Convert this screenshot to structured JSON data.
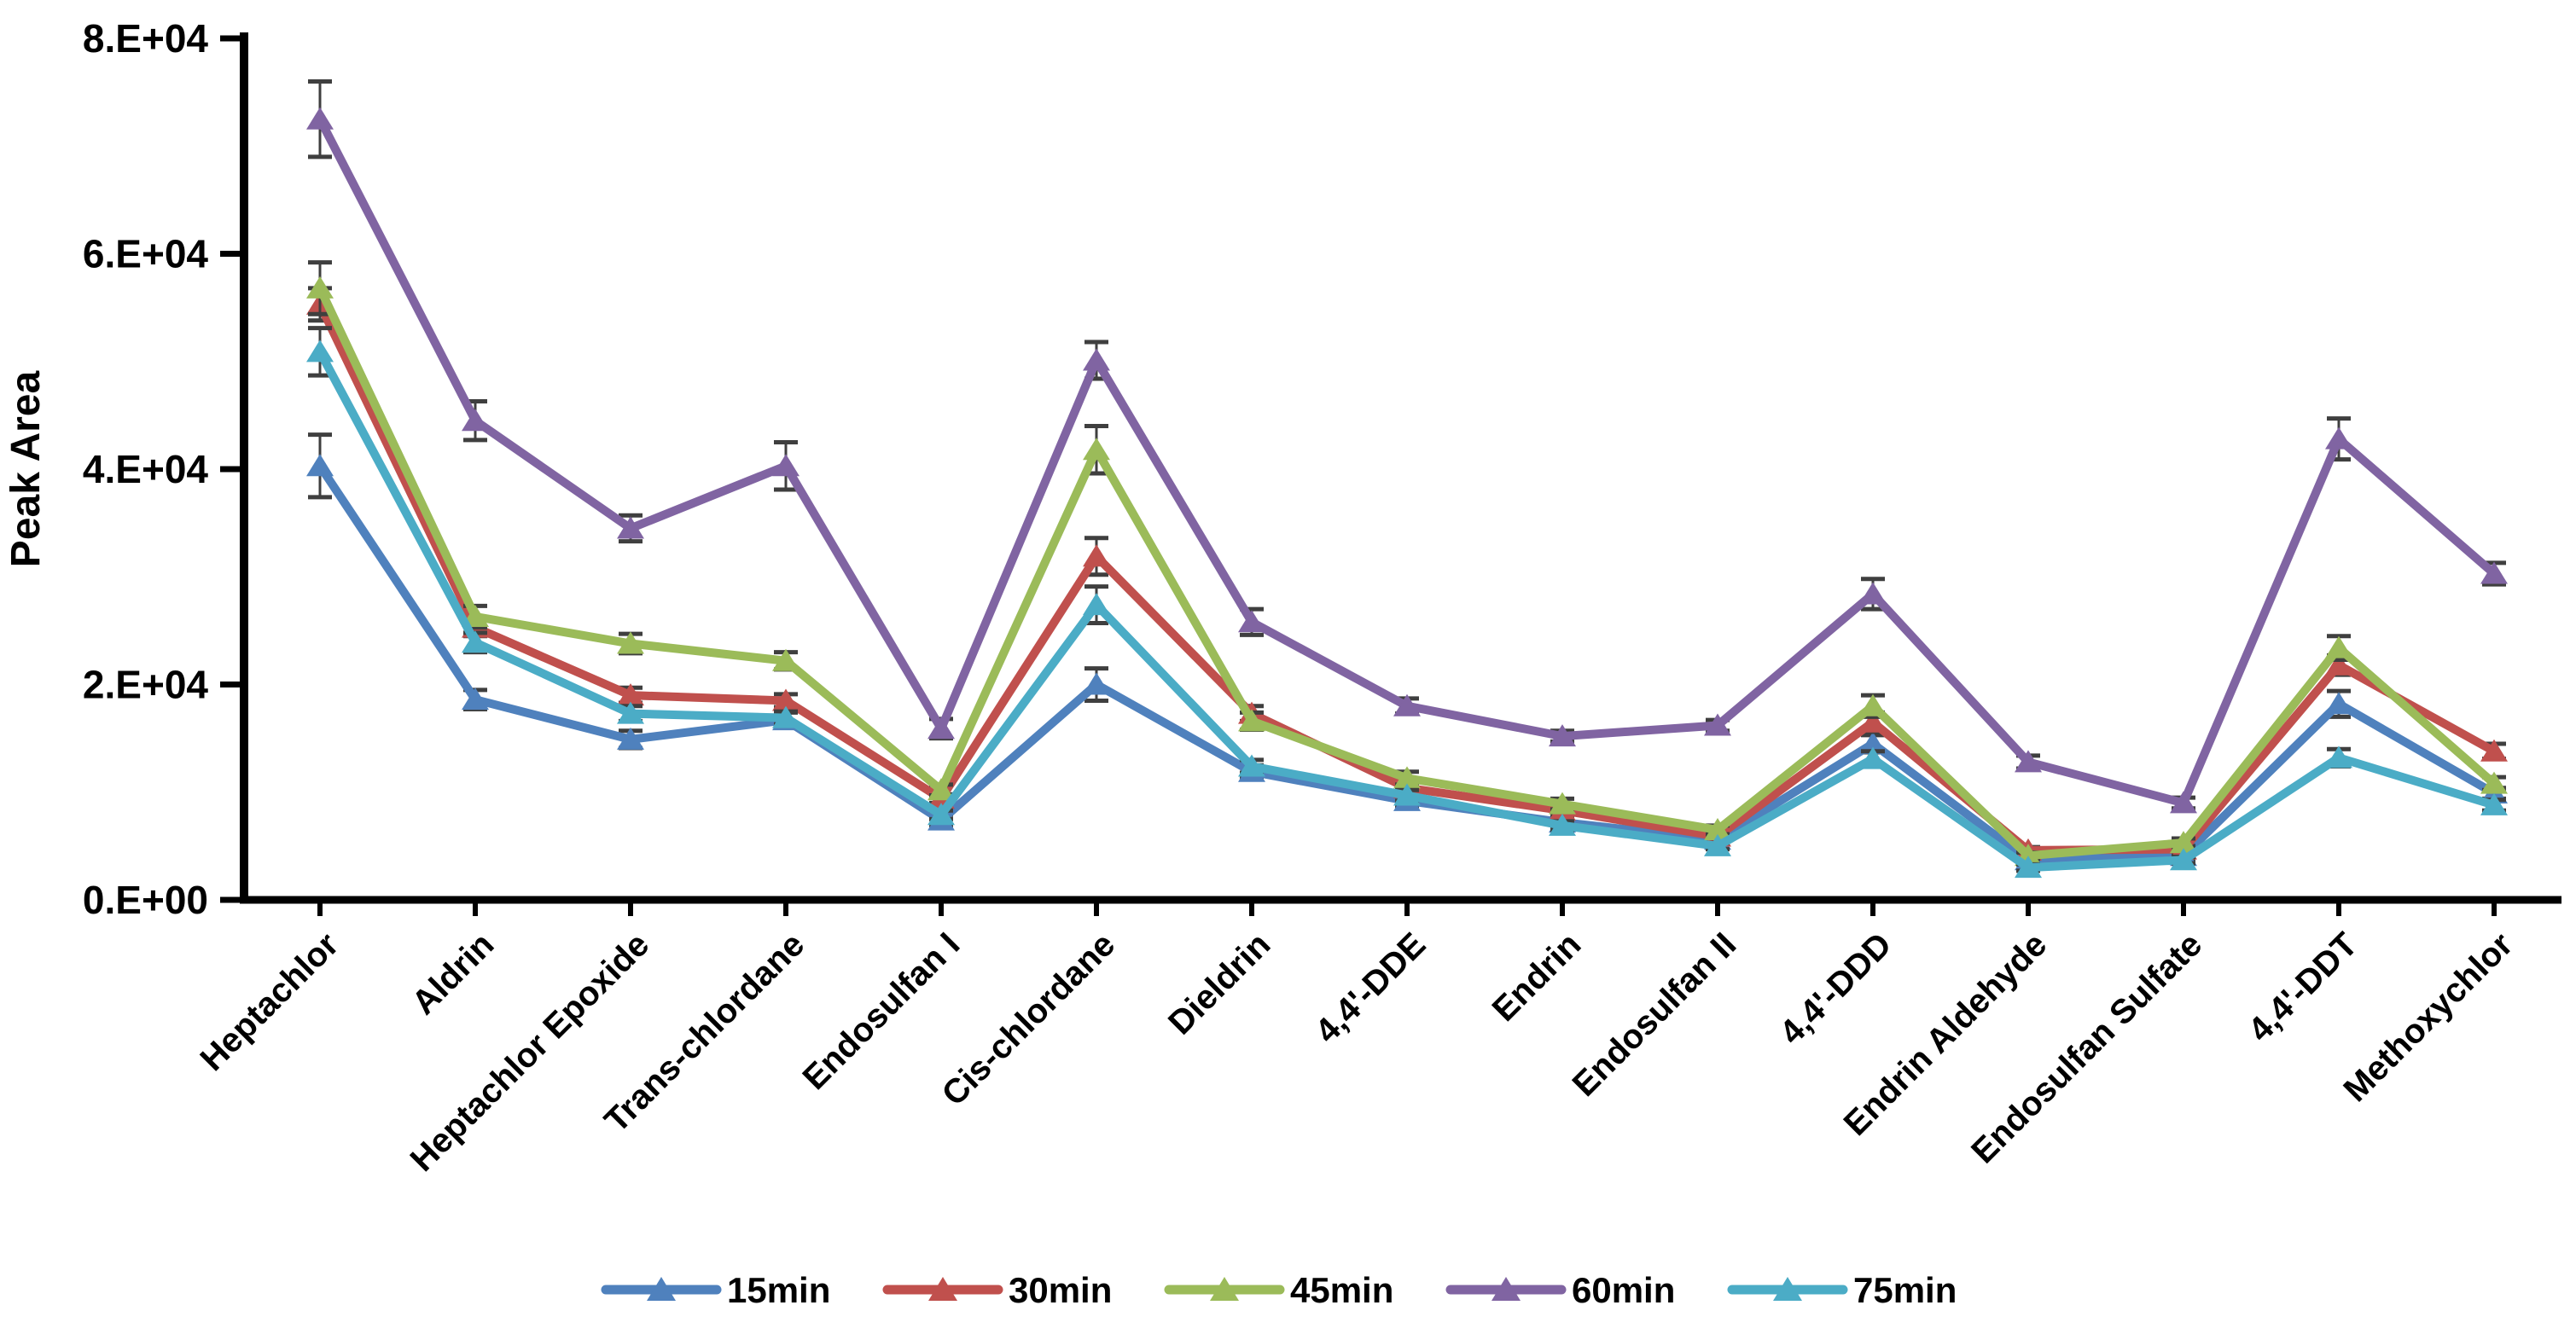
{
  "figure": {
    "background_color": "#ffffff",
    "axis_color": "#000000",
    "error_bar_color": "#3f3f3f"
  },
  "chart_data": {
    "type": "line",
    "title": "",
    "xlabel": "",
    "ylabel": "Peak Area",
    "ylim": [
      0,
      80000
    ],
    "grid": false,
    "legend_position": "bottom",
    "y_ticks": [
      {
        "value": 0,
        "label": "0.E+00"
      },
      {
        "value": 20000,
        "label": "2.E+04"
      },
      {
        "value": 40000,
        "label": "4.E+04"
      },
      {
        "value": 60000,
        "label": "6.E+04"
      },
      {
        "value": 80000,
        "label": "8.E+04"
      }
    ],
    "categories": [
      "Heptachlor",
      "Aldrin",
      "Heptachlor Epoxide",
      "Trans-chlordane",
      "Endosulfan I",
      "Cis-chlordane",
      "Dieldrin",
      "4,4'-DDE",
      "Endrin",
      "Endosulfan II",
      "4,4'-DDD",
      "Endrin Aldehyde",
      "Endosulfan Sulfate",
      "4,4'-DDT",
      "Methoxychlor"
    ],
    "series": [
      {
        "name": "15min",
        "color": "#4F81BD",
        "marker": "triangle-up",
        "values": [
          40300,
          18600,
          14900,
          16700,
          7400,
          20000,
          11900,
          9200,
          7200,
          5600,
          14500,
          3700,
          4100,
          18200,
          9900
        ],
        "errors": [
          2900,
          900,
          800,
          700,
          500,
          1500,
          600,
          500,
          400,
          300,
          800,
          300,
          400,
          1200,
          500
        ]
      },
      {
        "name": "30min",
        "color": "#C0504D",
        "marker": "triangle-up",
        "values": [
          55300,
          25300,
          19000,
          18500,
          9400,
          31900,
          17300,
          10400,
          8300,
          5900,
          16500,
          4600,
          4700,
          21800,
          13800
        ],
        "errors": [
          1500,
          800,
          700,
          600,
          400,
          1700,
          700,
          500,
          400,
          300,
          900,
          300,
          300,
          900,
          700
        ]
      },
      {
        "name": "45min",
        "color": "#9BBB59",
        "marker": "triangle-up",
        "values": [
          56800,
          26300,
          23800,
          22200,
          10200,
          41800,
          16600,
          11300,
          8900,
          6500,
          18000,
          4100,
          5300,
          23400,
          10800
        ],
        "errors": [
          2400,
          1000,
          900,
          800,
          500,
          2200,
          800,
          600,
          500,
          400,
          1000,
          300,
          400,
          1100,
          600
        ]
      },
      {
        "name": "60min",
        "color": "#8064A2",
        "marker": "triangle-up",
        "values": [
          72500,
          44500,
          34500,
          40300,
          15900,
          50100,
          25800,
          18000,
          15200,
          16200,
          28400,
          12800,
          9000,
          42800,
          30300
        ],
        "errors": [
          3500,
          1800,
          1200,
          2200,
          900,
          1700,
          1200,
          700,
          500,
          500,
          1400,
          600,
          500,
          1900,
          1000
        ]
      },
      {
        "name": "75min",
        "color": "#4BACC6",
        "marker": "triangle-up",
        "values": [
          50900,
          23900,
          17300,
          16900,
          7900,
          27400,
          12400,
          9700,
          6900,
          5000,
          13100,
          3000,
          3700,
          13200,
          8800
        ],
        "errors": [
          2200,
          900,
          700,
          600,
          400,
          1700,
          600,
          500,
          400,
          300,
          700,
          300,
          300,
          800,
          500
        ]
      }
    ]
  }
}
